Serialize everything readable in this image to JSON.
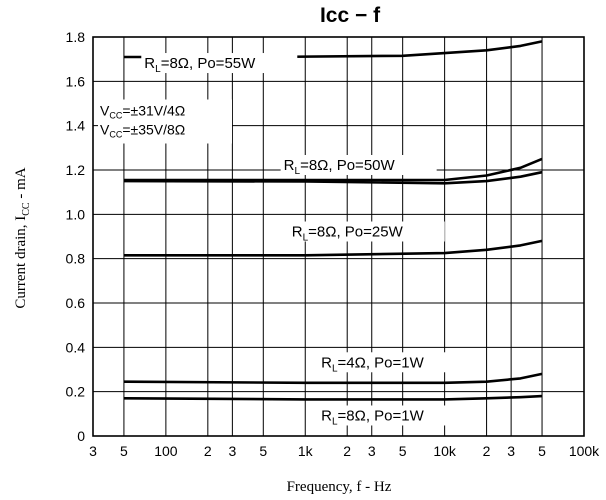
{
  "chart_data": {
    "type": "line",
    "title": "Icc − f",
    "xlabel": "Frequency, f - Hz",
    "ylabel_main": "Current drain, I",
    "ylabel_sub": "CC",
    "ylabel_tail": " - mA",
    "x_scale": "log",
    "xlim": [
      30,
      100000
    ],
    "ylim": [
      0,
      1.8
    ],
    "grid": true,
    "y_ticks": [
      {
        "value": 0,
        "label": "0"
      },
      {
        "value": 0.2,
        "label": "0.2"
      },
      {
        "value": 0.4,
        "label": "0.4"
      },
      {
        "value": 0.6,
        "label": "0.6"
      },
      {
        "value": 0.8,
        "label": "0.8"
      },
      {
        "value": 1.0,
        "label": "1.0"
      },
      {
        "value": 1.2,
        "label": "1.2"
      },
      {
        "value": 1.4,
        "label": "1.4"
      },
      {
        "value": 1.6,
        "label": "1.6"
      },
      {
        "value": 1.8,
        "label": "1.8"
      }
    ],
    "x_ticks": [
      {
        "value": 30,
        "label": "3"
      },
      {
        "value": 50,
        "label": "5"
      },
      {
        "value": 100,
        "label": "100"
      },
      {
        "value": 200,
        "label": "2"
      },
      {
        "value": 300,
        "label": "3"
      },
      {
        "value": 500,
        "label": "5"
      },
      {
        "value": 1000,
        "label": "1k"
      },
      {
        "value": 2000,
        "label": "2"
      },
      {
        "value": 3000,
        "label": "3"
      },
      {
        "value": 5000,
        "label": "5"
      },
      {
        "value": 10000,
        "label": "10k"
      },
      {
        "value": 20000,
        "label": "2"
      },
      {
        "value": 30000,
        "label": "3"
      },
      {
        "value": 50000,
        "label": "5"
      },
      {
        "value": 100000,
        "label": "100k"
      }
    ],
    "vcc_annotation": [
      "V₁₁=±31V/4Ω",
      "V₁₁=±35V/8Ω"
    ],
    "vcc_lines": [
      {
        "pre": "V",
        "sub": "CC",
        "post": "=±31V/4Ω"
      },
      {
        "pre": "V",
        "sub": "CC",
        "post": "=±35V/8Ω"
      }
    ],
    "series": [
      {
        "label": {
          "pre": "R",
          "sub": "L",
          "post": "=8Ω, Po=55W"
        },
        "label_at": {
          "x": 70,
          "y": 1.66
        },
        "points": [
          [
            50,
            1.71
          ],
          [
            500,
            1.71
          ],
          [
            5000,
            1.715
          ],
          [
            20000,
            1.74
          ],
          [
            35000,
            1.76
          ],
          [
            50000,
            1.78
          ]
        ]
      },
      {
        "label": {
          "pre": "R",
          "sub": "L",
          "post": "=8Ω, Po=50W"
        },
        "label_at": {
          "x": 700,
          "y": 1.2
        },
        "points": [
          [
            50,
            1.155
          ],
          [
            1000,
            1.155
          ],
          [
            10000,
            1.155
          ],
          [
            20000,
            1.175
          ],
          [
            35000,
            1.21
          ],
          [
            50000,
            1.25
          ]
        ]
      },
      {
        "label": null,
        "points": [
          [
            50,
            1.15
          ],
          [
            1000,
            1.148
          ],
          [
            10000,
            1.14
          ],
          [
            20000,
            1.15
          ],
          [
            35000,
            1.17
          ],
          [
            50000,
            1.19
          ]
        ]
      },
      {
        "label": {
          "pre": "R",
          "sub": "L",
          "post": "=8Ω, Po=25W"
        },
        "label_at": {
          "x": 800,
          "y": 0.9
        },
        "points": [
          [
            50,
            0.815
          ],
          [
            1000,
            0.815
          ],
          [
            10000,
            0.825
          ],
          [
            20000,
            0.84
          ],
          [
            35000,
            0.86
          ],
          [
            50000,
            0.88
          ]
        ]
      },
      {
        "label": {
          "pre": "R",
          "sub": "L",
          "post": "=4Ω, Po=1W"
        },
        "label_at": {
          "x": 1300,
          "y": 0.31
        },
        "points": [
          [
            50,
            0.245
          ],
          [
            1000,
            0.24
          ],
          [
            10000,
            0.24
          ],
          [
            20000,
            0.245
          ],
          [
            35000,
            0.26
          ],
          [
            50000,
            0.28
          ]
        ]
      },
      {
        "label": {
          "pre": "R",
          "sub": "L",
          "post": "=8Ω, Po=1W"
        },
        "label_at": {
          "x": 1300,
          "y": 0.07
        },
        "points": [
          [
            50,
            0.17
          ],
          [
            1000,
            0.165
          ],
          [
            10000,
            0.165
          ],
          [
            20000,
            0.17
          ],
          [
            35000,
            0.175
          ],
          [
            50000,
            0.18
          ]
        ]
      }
    ]
  }
}
